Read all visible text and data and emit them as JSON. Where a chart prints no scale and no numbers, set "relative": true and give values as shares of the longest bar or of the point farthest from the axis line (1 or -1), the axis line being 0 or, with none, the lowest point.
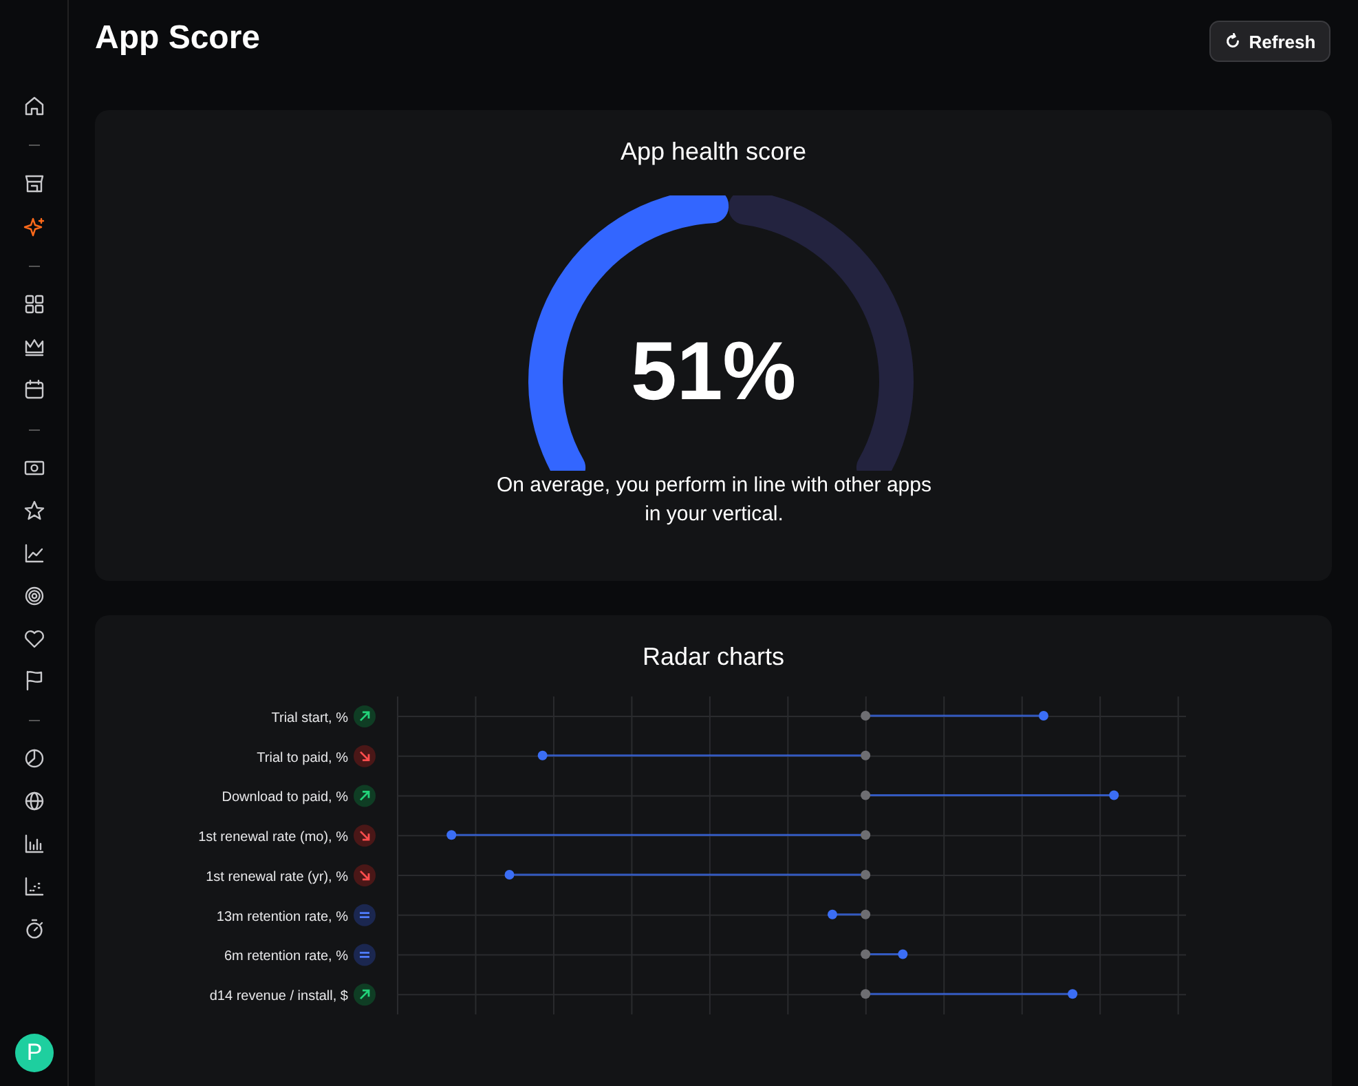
{
  "chart_data": [
    {
      "type": "other",
      "title": "App Score",
      "annotations": [
        "Refresh",
        "P"
      ]
    },
    {
      "type": "donut",
      "title": "App health score",
      "categories": [
        null,
        null
      ],
      "values": [
        51,
        49
      ],
      "colors": [
        "#3366ff",
        "#23233f"
      ],
      "value_labels": [
        "51%",
        null
      ],
      "annotations": [
        "On average, you perform in line with other apps in your vertical."
      ]
    },
    {
      "type": "lollipop",
      "orientation": "horizontal",
      "relative": true,
      "title": "Radar charts",
      "grid": true,
      "marker": "circle",
      "categories": [
        "Trial start, %",
        "Trial to paid, %",
        "Download to paid, %",
        "1st renewal rate (mo), %",
        "1st renewal rate (yr), %",
        "13m retention rate, %",
        "6m retention rate, %",
        "d14 revenue / install, $"
      ],
      "series": [
        {
          "color": "#3b6ef5",
          "values": [
            0.43,
            -0.78,
            0.6,
            -1,
            -0.86,
            -0.08,
            0.09,
            0.5
          ]
        },
        {
          "type": "scatter",
          "color": "#6e6e72",
          "values": [
            0,
            0,
            0,
            0,
            0,
            0,
            0,
            0
          ]
        }
      ]
    }
  ]
}
